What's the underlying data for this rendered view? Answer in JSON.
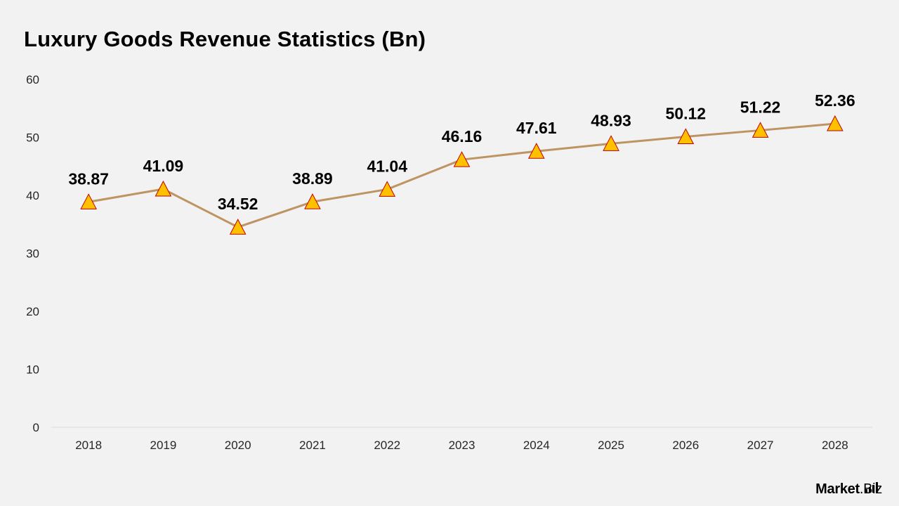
{
  "page": {
    "title": "Luxury Goods Revenue Statistics (Bn)"
  },
  "brand": {
    "name_main": "Market",
    "name_tld": ".Biz",
    "logo_icon": "bar-chart-icon"
  },
  "chart_data": {
    "type": "line",
    "title": "Luxury Goods Revenue Statistics (Bn)",
    "xlabel": "",
    "ylabel": "",
    "categories": [
      "2018",
      "2019",
      "2020",
      "2021",
      "2022",
      "2023",
      "2024",
      "2025",
      "2026",
      "2027",
      "2028"
    ],
    "series": [
      {
        "values": [
          38.87,
          41.09,
          34.52,
          38.89,
          41.04,
          46.16,
          47.61,
          48.93,
          50.12,
          51.22,
          52.36
        ],
        "labels": [
          "38.87",
          "41.09",
          "34.52",
          "38.89",
          "41.04",
          "46.16",
          "47.61",
          "48.93",
          "50.12",
          "51.22",
          "52.36"
        ],
        "marker": "triangle"
      }
    ],
    "ylim": [
      0,
      60
    ],
    "yticks": [
      "0",
      "10",
      "20",
      "30",
      "40",
      "50",
      "60"
    ],
    "grid": false,
    "legend": "none",
    "colors": {
      "line": "#bf9463",
      "marker_fill": "#ffc000",
      "marker_stroke": "#c00000",
      "axis": "#d9d9d9",
      "text": "#000000",
      "tick_text": "#262626"
    }
  }
}
